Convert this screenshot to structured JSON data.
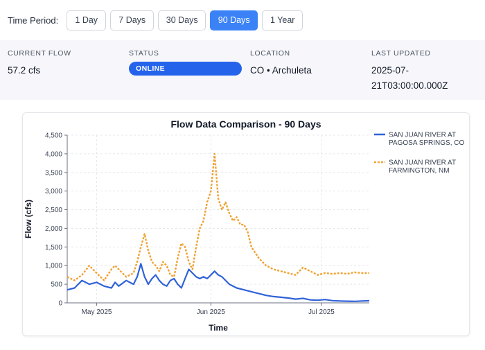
{
  "period_selector": {
    "label": "Time Period:",
    "options": [
      "1 Day",
      "7 Days",
      "30 Days",
      "90 Days",
      "1 Year"
    ],
    "selected": "90 Days"
  },
  "info": {
    "current_flow_label": "CURRENT FLOW",
    "current_flow_value": "57.2 cfs",
    "status_label": "STATUS",
    "status_value": "ONLINE",
    "location_label": "LOCATION",
    "location_value": "CO • Archuleta",
    "last_updated_label": "LAST UPDATED",
    "last_updated_value_line1": "2025-07-",
    "last_updated_value_line2": "21T03:00:00.000Z"
  },
  "colors": {
    "accent": "#3b82f6",
    "status": "#2563eb",
    "series_pagosa": "#2f62d8",
    "series_farmington": "#f0a232"
  },
  "chart_data": {
    "type": "line",
    "title": "Flow Data Comparison - 90 Days",
    "xlabel": "Time",
    "ylabel": "Flow (cfs)",
    "ylim": [
      0,
      4500
    ],
    "yticks": [
      0,
      500,
      1000,
      1500,
      2000,
      2500,
      3000,
      3500,
      4000,
      4500
    ],
    "ytick_labels": [
      "0",
      "500",
      "1,000",
      "1,500",
      "2,000",
      "2,500",
      "3,000",
      "3,500",
      "4,000",
      "4,500"
    ],
    "xlim_days": [
      0,
      82
    ],
    "xticks": [
      {
        "day": 8,
        "label": "May 2025"
      },
      {
        "day": 39,
        "label": "Jun 2025"
      },
      {
        "day": 69,
        "label": "Jul 2025"
      }
    ],
    "grid": true,
    "legend_position": "right",
    "series": [
      {
        "name_line1": "SAN JUAN RIVER AT",
        "name_line2": "PAGOSA SPRINGS, CO",
        "style": "solid",
        "points": [
          [
            0,
            350
          ],
          [
            2,
            400
          ],
          [
            4,
            600
          ],
          [
            6,
            500
          ],
          [
            8,
            550
          ],
          [
            10,
            450
          ],
          [
            12,
            400
          ],
          [
            13,
            550
          ],
          [
            14,
            450
          ],
          [
            16,
            600
          ],
          [
            18,
            500
          ],
          [
            19,
            700
          ],
          [
            20,
            1050
          ],
          [
            21,
            700
          ],
          [
            22,
            500
          ],
          [
            23,
            650
          ],
          [
            24,
            750
          ],
          [
            25,
            600
          ],
          [
            26,
            500
          ],
          [
            27,
            450
          ],
          [
            28,
            600
          ],
          [
            29,
            650
          ],
          [
            30,
            500
          ],
          [
            31,
            400
          ],
          [
            32,
            650
          ],
          [
            33,
            900
          ],
          [
            34,
            800
          ],
          [
            35,
            700
          ],
          [
            36,
            650
          ],
          [
            37,
            700
          ],
          [
            38,
            650
          ],
          [
            39,
            750
          ],
          [
            40,
            850
          ],
          [
            41,
            750
          ],
          [
            42,
            700
          ],
          [
            44,
            500
          ],
          [
            46,
            400
          ],
          [
            48,
            350
          ],
          [
            50,
            300
          ],
          [
            52,
            250
          ],
          [
            54,
            200
          ],
          [
            56,
            170
          ],
          [
            58,
            150
          ],
          [
            60,
            130
          ],
          [
            62,
            100
          ],
          [
            64,
            120
          ],
          [
            66,
            80
          ],
          [
            68,
            70
          ],
          [
            70,
            90
          ],
          [
            72,
            60
          ],
          [
            74,
            50
          ],
          [
            76,
            45
          ],
          [
            78,
            40
          ],
          [
            80,
            50
          ],
          [
            82,
            57
          ]
        ]
      },
      {
        "name_line1": "SAN JUAN RIVER AT",
        "name_line2": "FARMINGTON, NM",
        "style": "dashed",
        "points": [
          [
            0,
            700
          ],
          [
            2,
            600
          ],
          [
            4,
            750
          ],
          [
            6,
            1000
          ],
          [
            8,
            800
          ],
          [
            10,
            600
          ],
          [
            12,
            900
          ],
          [
            13,
            1000
          ],
          [
            14,
            900
          ],
          [
            16,
            700
          ],
          [
            18,
            800
          ],
          [
            19,
            1100
          ],
          [
            20,
            1500
          ],
          [
            21,
            1850
          ],
          [
            22,
            1400
          ],
          [
            23,
            1100
          ],
          [
            24,
            1000
          ],
          [
            25,
            850
          ],
          [
            26,
            1100
          ],
          [
            27,
            1000
          ],
          [
            28,
            750
          ],
          [
            29,
            700
          ],
          [
            30,
            1200
          ],
          [
            31,
            1600
          ],
          [
            32,
            1500
          ],
          [
            33,
            1100
          ],
          [
            34,
            900
          ],
          [
            35,
            1500
          ],
          [
            36,
            2000
          ],
          [
            37,
            2200
          ],
          [
            38,
            2700
          ],
          [
            39,
            3000
          ],
          [
            40,
            4000
          ],
          [
            41,
            2800
          ],
          [
            42,
            2500
          ],
          [
            43,
            2700
          ],
          [
            44,
            2400
          ],
          [
            45,
            2200
          ],
          [
            46,
            2300
          ],
          [
            47,
            2100
          ],
          [
            48,
            2100
          ],
          [
            49,
            1900
          ],
          [
            50,
            1500
          ],
          [
            52,
            1200
          ],
          [
            54,
            1000
          ],
          [
            56,
            900
          ],
          [
            58,
            850
          ],
          [
            60,
            800
          ],
          [
            62,
            750
          ],
          [
            64,
            950
          ],
          [
            66,
            850
          ],
          [
            68,
            750
          ],
          [
            70,
            800
          ],
          [
            72,
            780
          ],
          [
            74,
            800
          ],
          [
            76,
            780
          ],
          [
            78,
            820
          ],
          [
            80,
            800
          ],
          [
            82,
            800
          ]
        ]
      }
    ]
  }
}
